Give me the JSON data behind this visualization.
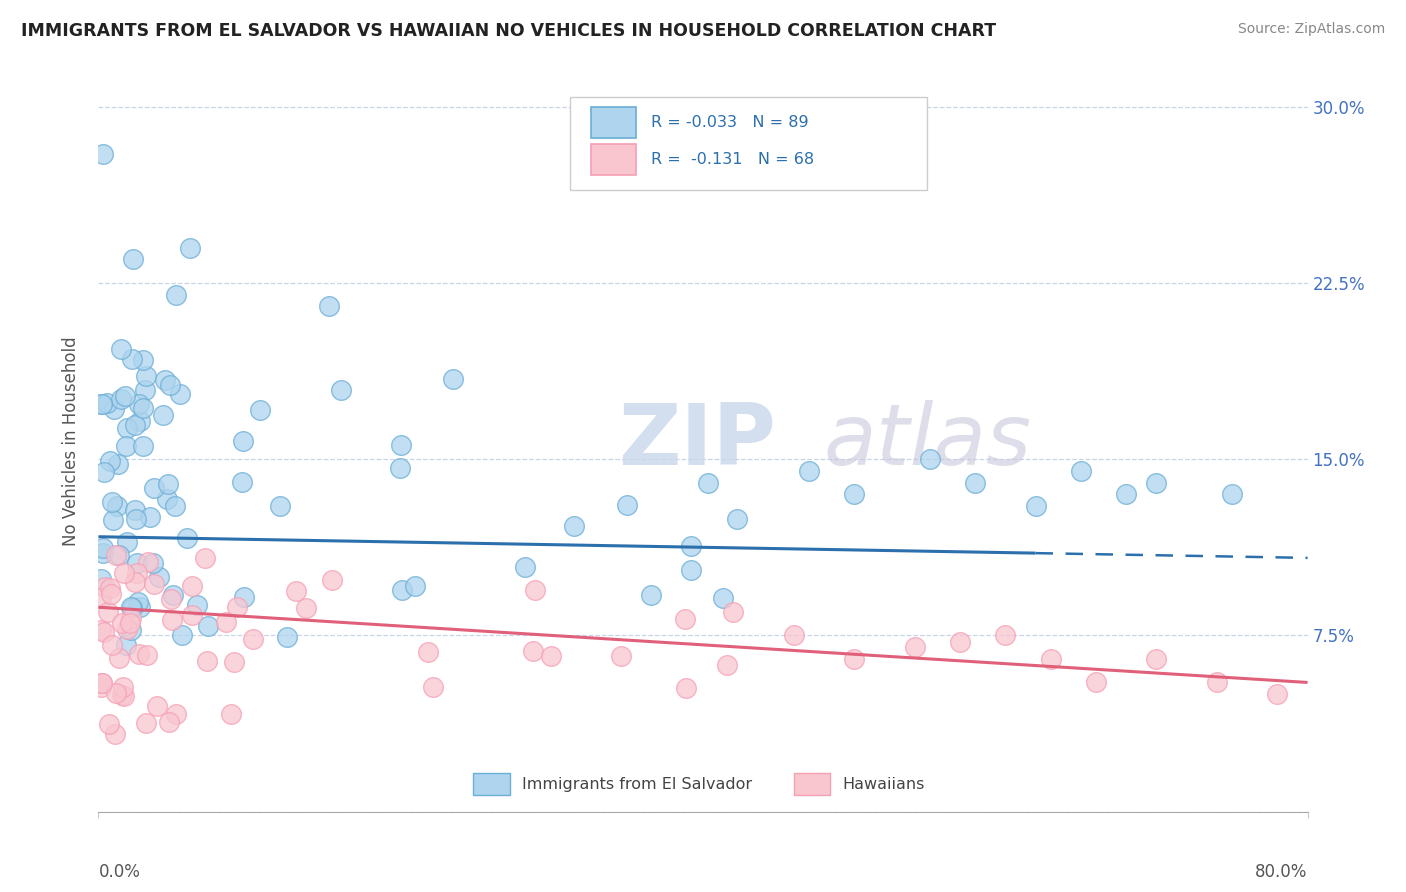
{
  "title": "IMMIGRANTS FROM EL SALVADOR VS HAWAIIAN NO VEHICLES IN HOUSEHOLD CORRELATION CHART",
  "source_text": "Source: ZipAtlas.com",
  "ylabel": "No Vehicles in Household",
  "y_ticks": [
    0.0,
    0.075,
    0.15,
    0.225,
    0.3
  ],
  "y_tick_labels": [
    "",
    "7.5%",
    "15.0%",
    "22.5%",
    "30.0%"
  ],
  "x_lim": [
    0.0,
    0.8
  ],
  "y_lim": [
    0.0,
    0.315
  ],
  "blue_face": "#aed4ee",
  "blue_edge": "#6baed6",
  "pink_face": "#f9c6d0",
  "pink_edge": "#f4a0b5",
  "trend_blue_solid": "#2c6fad",
  "trend_blue_dash": "#2c6fad",
  "trend_pink": "#e0607a",
  "watermark_zip": "ZIP",
  "watermark_atlas": "atlas",
  "legend_r1": "R = -0.033",
  "legend_n1": "N = 89",
  "legend_r2": "R =  -0.131",
  "legend_n2": "N = 68"
}
